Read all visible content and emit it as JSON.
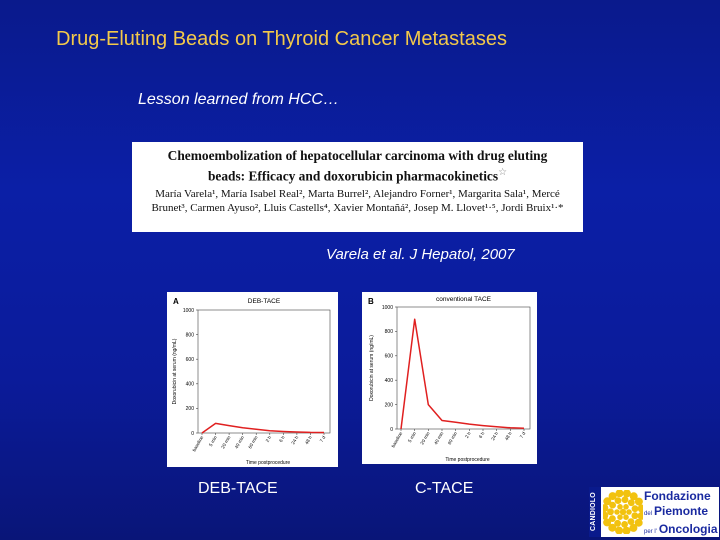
{
  "slide": {
    "title": "Drug-Eluting Beads on Thyroid Cancer Metastases",
    "subtitle": "Lesson learned from HCC…",
    "citation": "Varela et al. J Hepatol, 2007"
  },
  "paper": {
    "title": "Chemoembolization of hepatocellular carcinoma with drug eluting beads: Efficacy and doxorubicin pharmacokinetics",
    "star": "☆",
    "authors": "María Varela¹, María Isabel Real², Marta Burrel², Alejandro Forner¹, Margarita Sala¹, Mercé Brunet³, Carmen Ayuso², Lluis Castells⁴, Xavier Montañá², Josep M. Llovet¹·⁵, Jordi Bruix¹·*"
  },
  "chart_data": [
    {
      "type": "line",
      "panel": "A",
      "title": "DEB-TACE",
      "xlabel": "Time postprocedure",
      "ylabel": "Doxorubicin at serum (ng/mL)",
      "ylim": [
        0,
        1000
      ],
      "yticks": [
        0,
        200,
        400,
        600,
        800,
        1000
      ],
      "categories": [
        "baseline",
        "5 min",
        "20 min",
        "40 min",
        "60 min",
        "2 h",
        "6 h",
        "24 h",
        "48 h",
        "7 d"
      ],
      "series": [
        {
          "values": [
            0,
            78,
            60,
            42,
            30,
            18,
            12,
            8,
            5,
            4
          ],
          "color": "#e02020"
        }
      ],
      "grid": false
    },
    {
      "type": "line",
      "panel": "B",
      "title": "conventional TACE",
      "xlabel": "Time postprocedure",
      "ylabel": "Doxorubicin at serum (ng/mL)",
      "ylim": [
        0,
        1000
      ],
      "yticks": [
        0,
        200,
        400,
        600,
        800,
        1000
      ],
      "categories": [
        "baseline",
        "5 min",
        "20 min",
        "40 min",
        "60 min",
        "2 h",
        "6 h",
        "24 h",
        "48 h",
        "7 d"
      ],
      "series": [
        {
          "values": [
            0,
            900,
            200,
            70,
            55,
            40,
            28,
            18,
            10,
            6
          ],
          "color": "#e02020"
        }
      ],
      "grid": false
    }
  ],
  "panel_labels": {
    "a": "DEB-TACE",
    "b": "C-TACE"
  },
  "logo": {
    "side_text": "CANDIOLO",
    "line1": "Fondazione",
    "line2_prefix": "del",
    "line2": "Piemonte",
    "line3_prefix": "per l'",
    "line3": "Oncologia",
    "accent": "#f2c20f"
  }
}
